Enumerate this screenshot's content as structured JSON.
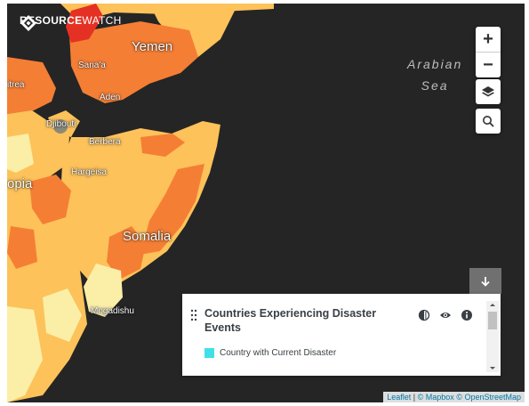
{
  "brand": {
    "name_bold": "RESOURCE",
    "name_light": "WATCH"
  },
  "map": {
    "country_labels": [
      "Yemen",
      "Somalia",
      "opia"
    ],
    "city_labels": [
      "Sana'a",
      "Aden",
      "Djibouti",
      "Berbera",
      "Hargeisa",
      "Mogadishu",
      "itrea"
    ],
    "sea_label_line1": "Arabian",
    "sea_label_line2": "Sea",
    "fill_colors": {
      "water": "#252525",
      "level_low": "#fbefa8",
      "level_mid": "#fdc25a",
      "level_high": "#f57e35",
      "level_max": "#e53123"
    }
  },
  "controls": {
    "zoom_in_label": "+",
    "zoom_out_label": "−",
    "layers_icon": "layers-icon",
    "search_icon": "search-icon"
  },
  "legend": {
    "toggle_icon": "arrow-down-icon",
    "drag_icon": "drag-handle-icon",
    "title": "Countries Experiencing Disaster Events",
    "opacity_icon": "opacity-icon",
    "visibility_icon": "eye-icon",
    "info_icon": "info-icon",
    "item_label": "Country with Current Disaster",
    "item_color": "#40e0e8"
  },
  "attribution": {
    "leaflet": "Leaflet",
    "separator": "|",
    "mapbox": "© Mapbox",
    "osm": "© OpenStreetMap"
  }
}
